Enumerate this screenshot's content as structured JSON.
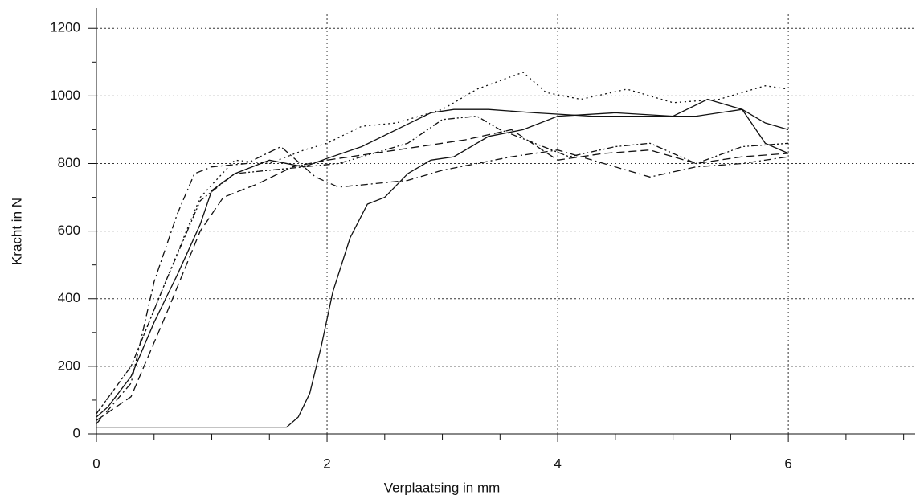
{
  "chart_data": {
    "type": "line",
    "x_label": "Verplaatsing in mm",
    "y_label": "Kracht in N",
    "xlim": [
      0,
      7.1
    ],
    "ylim": [
      0,
      1260
    ],
    "xticks": [
      0,
      2,
      4,
      6
    ],
    "yticks": [
      0,
      200,
      400,
      600,
      800,
      1000,
      1200
    ],
    "x_minor_ticks": [
      0.5,
      1,
      1.5,
      2.5,
      3,
      3.5,
      4.5,
      5,
      5.5,
      6.5,
      7
    ],
    "y_minor_ticks": [
      100,
      300,
      500,
      700,
      900,
      1100
    ],
    "grid": true,
    "series": [
      {
        "color": "#111111",
        "dash": "none",
        "x": [
          0,
          0.1,
          0.3,
          0.5,
          0.7,
          0.9,
          1.0,
          1.2,
          1.5,
          1.8,
          2.0,
          2.3,
          2.6,
          2.9,
          3.1,
          3.4,
          3.8,
          4.3,
          4.8,
          5.2,
          5.6,
          5.8,
          6.0
        ],
        "values": [
          50,
          80,
          170,
          330,
          470,
          620,
          720,
          770,
          810,
          790,
          815,
          850,
          900,
          950,
          960,
          960,
          950,
          940,
          940,
          940,
          960,
          920,
          900
        ]
      },
      {
        "color": "#111111",
        "dash": "none",
        "x": [
          0,
          1.65,
          1.75,
          1.85,
          1.95,
          2.05,
          2.2,
          2.35,
          2.5,
          2.7,
          2.9,
          3.1,
          3.4,
          3.7,
          4.0,
          4.5,
          5.0,
          5.3,
          5.6,
          5.8,
          6.0
        ],
        "values": [
          20,
          20,
          50,
          120,
          260,
          420,
          580,
          680,
          700,
          770,
          810,
          820,
          880,
          900,
          940,
          950,
          940,
          990,
          960,
          860,
          830
        ]
      },
      {
        "color": "#111111",
        "dash": "2 4",
        "x": [
          0,
          0.3,
          0.6,
          0.9,
          1.2,
          1.5,
          1.8,
          2.0,
          2.3,
          2.6,
          3.0,
          3.3,
          3.7,
          3.9,
          4.2,
          4.6,
          5.0,
          5.4,
          5.8,
          6.0
        ],
        "values": [
          60,
          200,
          450,
          700,
          810,
          800,
          840,
          860,
          910,
          920,
          960,
          1020,
          1070,
          1010,
          990,
          1020,
          980,
          990,
          1030,
          1020
        ]
      },
      {
        "color": "#111111",
        "dash": "10 5",
        "x": [
          0,
          0.3,
          0.6,
          0.9,
          1.1,
          1.4,
          1.7,
          2.0,
          2.4,
          2.8,
          3.2,
          3.6,
          4.0,
          4.4,
          4.8,
          5.2,
          5.6,
          6.0
        ],
        "values": [
          40,
          110,
          350,
          600,
          700,
          740,
          790,
          810,
          830,
          850,
          870,
          900,
          810,
          830,
          840,
          800,
          820,
          830
        ]
      },
      {
        "color": "#111111",
        "dash": "9 4 2 4",
        "x": [
          0,
          0.3,
          0.5,
          0.7,
          0.85,
          1.0,
          1.3,
          1.6,
          1.9,
          2.1,
          2.4,
          2.7,
          3.0,
          3.3,
          3.6,
          4.0,
          4.4,
          4.8,
          5.2,
          5.6,
          6.0
        ],
        "values": [
          30,
          150,
          450,
          650,
          770,
          790,
          800,
          850,
          760,
          730,
          740,
          750,
          780,
          800,
          820,
          840,
          800,
          760,
          790,
          800,
          820
        ]
      },
      {
        "color": "#111111",
        "dash": "8 3 2 3 2 3",
        "x": [
          0,
          0.3,
          0.6,
          0.9,
          1.2,
          1.5,
          1.8,
          2.1,
          2.4,
          2.7,
          3.0,
          3.3,
          3.5,
          3.8,
          4.1,
          4.5,
          4.8,
          5.2,
          5.6,
          6.0
        ],
        "values": [
          60,
          200,
          450,
          690,
          770,
          780,
          790,
          800,
          830,
          860,
          930,
          940,
          900,
          860,
          820,
          850,
          860,
          800,
          850,
          860
        ]
      }
    ]
  }
}
